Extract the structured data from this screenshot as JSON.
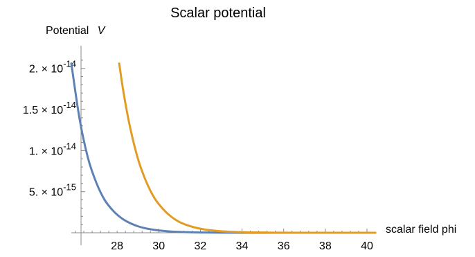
{
  "chart_data": {
    "type": "line",
    "title": "Scalar potential",
    "xlabel": "scalar field phi",
    "ylabel_text": "Potential",
    "ylabel_symbol": "V",
    "xlim": [
      25.8,
      40.4
    ],
    "ylim": [
      0,
      2.2e-14
    ],
    "x_ticks": [
      28,
      30,
      32,
      34,
      36,
      38,
      40
    ],
    "x_tick_labels": [
      "28",
      "30",
      "32",
      "34",
      "36",
      "38",
      "40"
    ],
    "y_ticks": [
      {
        "value": 5e-15,
        "mantissa": "5.",
        "exponent": "-15"
      },
      {
        "value": 1e-14,
        "mantissa": "1.",
        "exponent": "-14"
      },
      {
        "value": 1.5e-14,
        "mantissa": "1.5",
        "exponent": "-14"
      },
      {
        "value": 2e-14,
        "mantissa": "2.",
        "exponent": "-14"
      }
    ],
    "times_symbol": "× 10",
    "series": [
      {
        "color": "#5e81b5",
        "x": [
          25.8,
          26.2,
          26.6,
          27.0,
          27.4,
          27.8,
          28.2,
          28.6,
          29.0,
          29.4,
          29.8,
          30.2,
          30.6,
          31.0,
          31.6,
          32.2,
          33.0,
          34.0,
          36.0,
          38.0,
          40.4
        ],
        "y": [
          2.06e-14,
          1.38e-14,
          9.1e-15,
          6.1e-15,
          4e-15,
          2.7e-15,
          1.8e-15,
          1.2e-15,
          7.9e-16,
          5.2e-16,
          3.5e-16,
          2.3e-16,
          1.5e-16,
          1e-16,
          5e-17,
          3e-17,
          1e-17,
          5e-18,
          1e-18,
          0,
          0
        ]
      },
      {
        "color": "#e19c24",
        "x": [
          28.1,
          28.3,
          28.6,
          29.0,
          29.4,
          29.8,
          30.2,
          30.6,
          31.0,
          31.4,
          31.8,
          32.2,
          32.6,
          33.0,
          33.6,
          34.4,
          35.5,
          37.0,
          39.0,
          40.4
        ],
        "y": [
          2.06e-14,
          1.72e-14,
          1.31e-14,
          9e-15,
          6.2e-15,
          4.2e-15,
          2.9e-15,
          1.95e-15,
          1.3e-15,
          8.9e-16,
          6e-16,
          4e-16,
          2.7e-16,
          1.8e-16,
          1e-16,
          4.5e-17,
          1.5e-17,
          4e-18,
          1e-18,
          0
        ]
      }
    ]
  }
}
